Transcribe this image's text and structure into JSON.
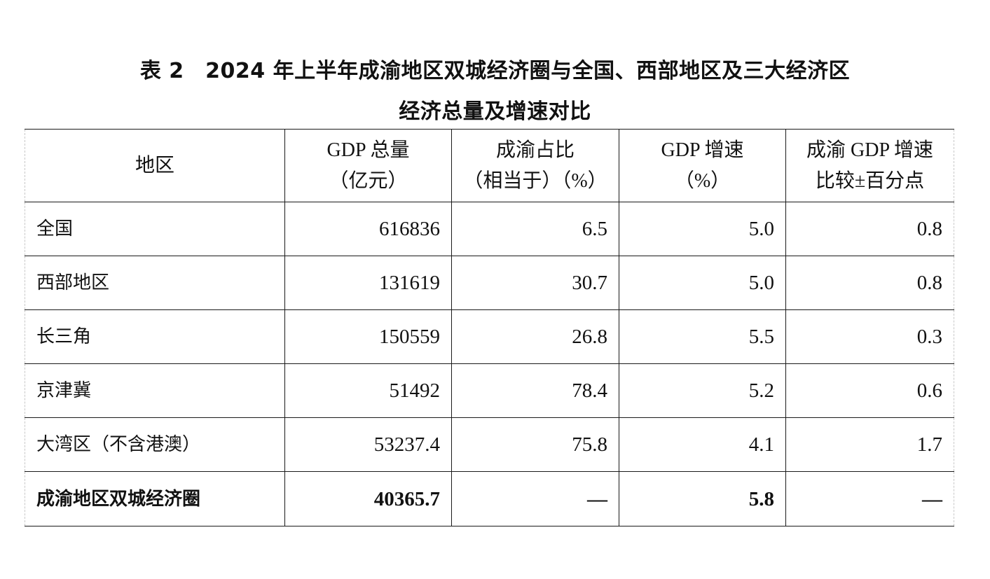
{
  "title": {
    "line1": "表 2　2024 年上半年成渝地区双城经济圈与全国、西部地区及三大经济区",
    "line2": "经济总量及增速对比"
  },
  "table": {
    "headers": [
      {
        "line1": "地区",
        "line2": ""
      },
      {
        "line1": "GDP 总量",
        "line2": "（亿元）"
      },
      {
        "line1": "成渝占比",
        "line2": "（相当于）（%）"
      },
      {
        "line1": "GDP 增速",
        "line2": "（%）"
      },
      {
        "line1": "成渝 GDP 增速",
        "line2": "比较±百分点"
      }
    ],
    "rows": [
      {
        "region": "全国",
        "gdp_total": "616836",
        "chengyu_share": "6.5",
        "gdp_growth": "5.0",
        "growth_diff": "0.8"
      },
      {
        "region": "西部地区",
        "gdp_total": "131619",
        "chengyu_share": "30.7",
        "gdp_growth": "5.0",
        "growth_diff": "0.8"
      },
      {
        "region": "长三角",
        "gdp_total": "150559",
        "chengyu_share": "26.8",
        "gdp_growth": "5.5",
        "growth_diff": "0.3"
      },
      {
        "region": "京津冀",
        "gdp_total": "51492",
        "chengyu_share": "78.4",
        "gdp_growth": "5.2",
        "growth_diff": "0.6"
      },
      {
        "region": "大湾区（不含港澳）",
        "gdp_total": "53237.4",
        "chengyu_share": "75.8",
        "gdp_growth": "4.1",
        "growth_diff": "1.7"
      },
      {
        "region": "成渝地区双城经济圈",
        "gdp_total": "40365.7",
        "chengyu_share": "—",
        "gdp_growth": "5.8",
        "growth_diff": "—"
      }
    ]
  },
  "chart_data": {
    "type": "table",
    "title": "表 2　2024 年上半年成渝地区双城经济圈与全国、西部地区及三大经济区经济总量及增速对比",
    "columns": [
      "地区",
      "GDP 总量（亿元）",
      "成渝占比（相当于）（%）",
      "GDP 增速（%）",
      "成渝 GDP 增速比较±百分点"
    ],
    "rows": [
      [
        "全国",
        616836,
        6.5,
        5.0,
        0.8
      ],
      [
        "西部地区",
        131619,
        30.7,
        5.0,
        0.8
      ],
      [
        "长三角",
        150559,
        26.8,
        5.5,
        0.3
      ],
      [
        "京津冀",
        51492,
        78.4,
        5.2,
        0.6
      ],
      [
        "大湾区（不含港澳）",
        53237.4,
        75.8,
        4.1,
        1.7
      ],
      [
        "成渝地区双城经济圈",
        40365.7,
        "—",
        5.8,
        "—"
      ]
    ]
  }
}
